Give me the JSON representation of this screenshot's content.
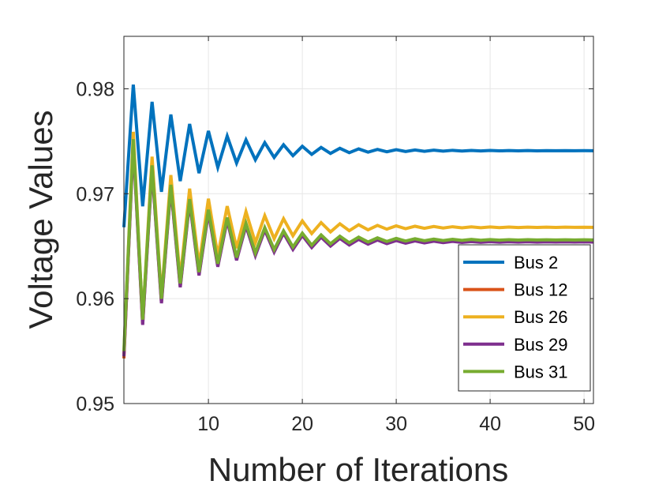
{
  "chart_data": {
    "type": "line",
    "title": "",
    "xlabel": "Number of Iterations",
    "ylabel": "Voltage Values",
    "xlim": [
      1,
      51
    ],
    "ylim": [
      0.95,
      0.985
    ],
    "x_ticks": [
      10,
      20,
      30,
      40,
      50
    ],
    "x_tick_labels": [
      "10",
      "20",
      "30",
      "40",
      "50"
    ],
    "y_ticks": [
      0.95,
      0.96,
      0.97,
      0.98
    ],
    "y_tick_labels": [
      "0.95",
      "0.96",
      "0.97",
      "0.98"
    ],
    "grid": true,
    "legend_position": "bottom-right",
    "series": [
      {
        "name": "Bus 2",
        "color": "#0072BD",
        "start": 0.9668,
        "peak": 0.9804,
        "trough": 0.9688,
        "final": 0.9741
      },
      {
        "name": "Bus 12",
        "color": "#D95319",
        "start": 0.9543,
        "peak": 0.975,
        "trough": 0.9576,
        "final": 0.9655
      },
      {
        "name": "Bus 26",
        "color": "#EDB120",
        "start": 0.9547,
        "peak": 0.9759,
        "trough": 0.9578,
        "final": 0.9668
      },
      {
        "name": "Bus 29",
        "color": "#7E2F8E",
        "start": 0.9545,
        "peak": 0.9748,
        "trough": 0.9575,
        "final": 0.9654
      },
      {
        "name": "Bus 31",
        "color": "#77AC30",
        "start": 0.955,
        "peak": 0.9752,
        "trough": 0.958,
        "final": 0.9656
      }
    ]
  }
}
